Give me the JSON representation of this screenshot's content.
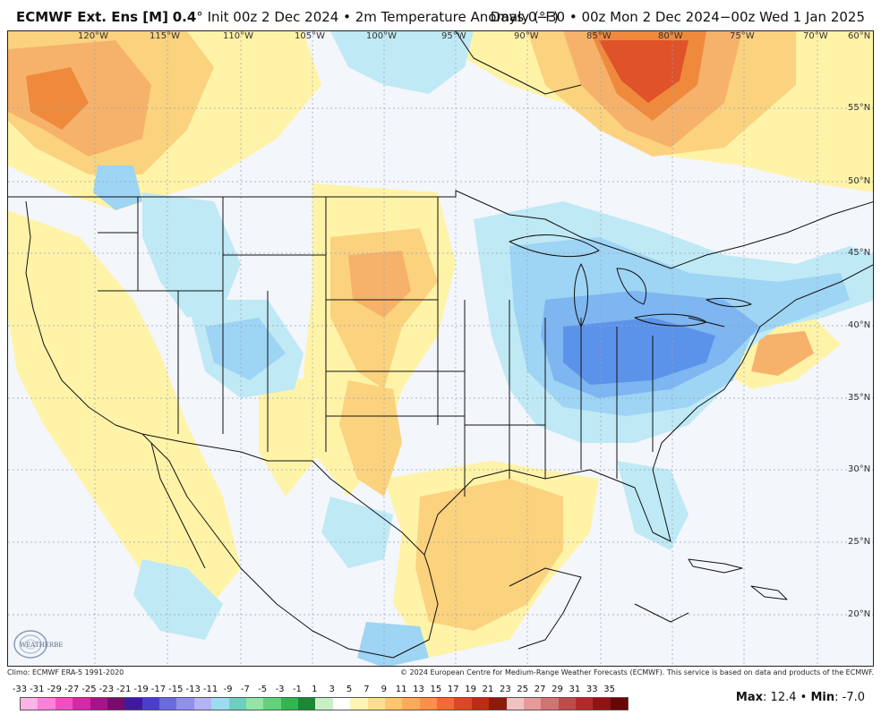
{
  "header": {
    "model": "ECMWF Ext. Ens [M]",
    "resolution": "0.4",
    "deg": "°",
    "init": "Init 00z 2 Dec 2024",
    "sep": "•",
    "variable": "2m Temperature Anomaly (°F)",
    "valid": "Days 0−30 • 00z Mon 2 Dec 2024−00z Wed 1 Jan 2025"
  },
  "longitudes": [
    "120°W",
    "115°W",
    "110°W",
    "105°W",
    "100°W",
    "95°W",
    "90°W",
    "85°W",
    "80°W",
    "75°W",
    "70°W",
    "60°N"
  ],
  "latitudes": [
    "55°N",
    "50°N",
    "45°N",
    "40°N",
    "35°N",
    "30°N",
    "25°N",
    "20°N"
  ],
  "footer": {
    "climo": "Climo: ECMWF ERA-5 1991-2020",
    "copyright": "© 2024 European Centre for Medium-Range Weather Forecasts (ECMWF). This service is based on data and products of the ECMWF."
  },
  "scale": {
    "labels": [
      "-33",
      "-31",
      "-29",
      "-27",
      "-25",
      "-23",
      "-21",
      "-19",
      "-17",
      "-15",
      "-13",
      "-11",
      "-9",
      "-7",
      "-5",
      "-3",
      "-1",
      "1",
      "3",
      "5",
      "7",
      "9",
      "11",
      "13",
      "15",
      "17",
      "19",
      "21",
      "23",
      "25",
      "27",
      "29",
      "31",
      "33",
      "35"
    ],
    "colors": [
      "#ffb3e6",
      "#ff80d9",
      "#f04fc4",
      "#d22aa8",
      "#a8128c",
      "#7a0a6e",
      "#3e1a9e",
      "#4b3ec9",
      "#6a6ae0",
      "#8f8ff0",
      "#b3b3f5",
      "#9bdcf0",
      "#6cd0c0",
      "#8fe6a6",
      "#5fd47a",
      "#2fb84e",
      "#188a34",
      "#c7f0c7",
      "#ffffff",
      "#fff4b3",
      "#ffe08a",
      "#ffc66b",
      "#ffaa55",
      "#ff8f45",
      "#f26b30",
      "#d94a1f",
      "#b82f12",
      "#8f1a0a",
      "#f2c2c2",
      "#e69a9a",
      "#d47272",
      "#c24a4a",
      "#b02a2a",
      "#8f1414",
      "#6a0606"
    ]
  },
  "stats": {
    "max_label": "Max",
    "max_value": "12.4",
    "min_label": "Min",
    "min_value": "-7.0"
  },
  "logo": {
    "text": "WEATHERBELL"
  },
  "colors": {
    "neutral": "#f3f6fb",
    "warm_light": "#fff3a8",
    "warm": "#fbd27e",
    "warm_med": "#f6b26b",
    "warm_strong": "#ef8a3c",
    "hot": "#e0522a",
    "hottest": "#c9341a",
    "cool_light": "#bfe9f5",
    "cool": "#9ed4f4",
    "cool_med": "#7db6f0",
    "cool_strong": "#5c93ea"
  }
}
